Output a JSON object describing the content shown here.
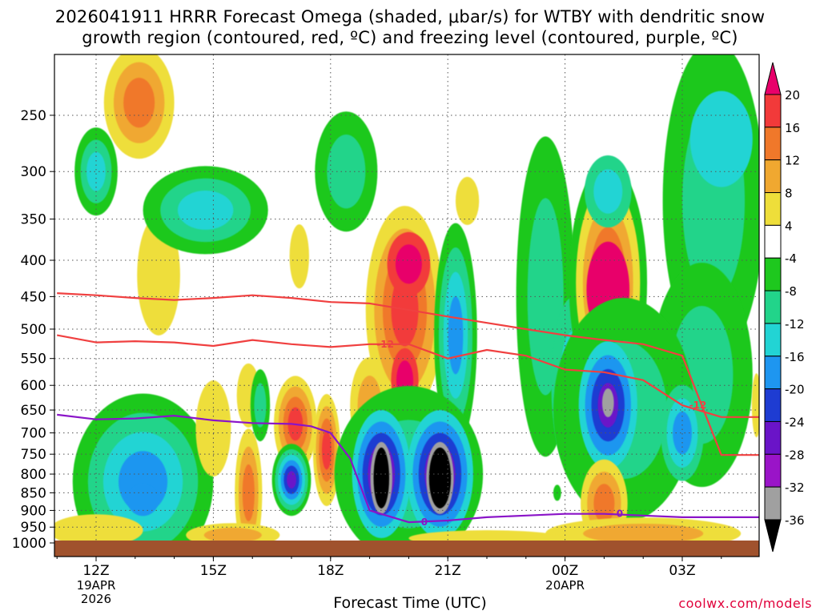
{
  "title_line1": "2026041911 HRRR Forecast Omega (shaded, μbar/s) for WTBY with dendritic snow",
  "title_line2": "growth region (contoured, red, ºC) and freezing level (contoured, purple, ºC)",
  "credit": "coolwx.com/models",
  "chart_data": {
    "type": "heatmap",
    "title": "2026041911 HRRR Forecast Omega (shaded, μbar/s) for WTBY with dendritic snow growth region (contoured, red, ºC) and freezing level (contoured, purple, ºC)",
    "xlabel": "Forecast Time (UTC)",
    "ylabel": "",
    "x_ticks": [
      {
        "hour": 12,
        "label": "12Z",
        "sub1": "19APR",
        "sub2": "2026"
      },
      {
        "hour": 15,
        "label": "15Z",
        "sub1": "",
        "sub2": ""
      },
      {
        "hour": 18,
        "label": "18Z",
        "sub1": "",
        "sub2": ""
      },
      {
        "hour": 21,
        "label": "21Z",
        "sub1": "",
        "sub2": ""
      },
      {
        "hour": 24,
        "label": "00Z",
        "sub1": "20APR",
        "sub2": ""
      },
      {
        "hour": 27,
        "label": "03Z",
        "sub1": "",
        "sub2": ""
      }
    ],
    "xlim": [
      11,
      29
    ],
    "y_ticks": [
      250,
      300,
      350,
      400,
      450,
      500,
      550,
      600,
      650,
      700,
      750,
      800,
      850,
      900,
      950,
      1000
    ],
    "ylim": [
      200,
      1000
    ],
    "y_scale": "log-pressure",
    "grid": true,
    "colorbar": {
      "levels": [
        20,
        16,
        12,
        8,
        4,
        -4,
        -8,
        -12,
        -16,
        -20,
        -24,
        -28,
        -32,
        -36
      ],
      "colors": [
        "#e8006a",
        "#f23a3a",
        "#f0782a",
        "#f0a830",
        "#eede3a",
        "#ffffff",
        "#1ec81e",
        "#22d48a",
        "#22d4d4",
        "#1e96f0",
        "#1e3cd2",
        "#6a14c8",
        "#9a14c8",
        "#a0a0a0",
        "#000000"
      ]
    },
    "omega_features": [
      {
        "hour": 19.3,
        "pressure": 810,
        "value": -38,
        "label": "strong ascent core"
      },
      {
        "hour": 20.8,
        "pressure": 810,
        "value": -38,
        "label": "strong ascent core"
      },
      {
        "hour": 25.1,
        "pressure": 440,
        "value": 20,
        "label": "strong descent core"
      },
      {
        "hour": 19.9,
        "pressure": 460,
        "value": 18,
        "label": "descent core"
      },
      {
        "hour": 13.1,
        "pressure": 260,
        "value": 13,
        "label": "descent core"
      },
      {
        "hour": 25.1,
        "pressure": 640,
        "value": -30,
        "label": "ascent core"
      },
      {
        "hour": 17.0,
        "pressure": 815,
        "value": -30,
        "label": "ascent core"
      }
    ],
    "series": [
      {
        "name": "-12",
        "color": "#f04040",
        "x": [
          11.0,
          12.0,
          13.0,
          14.0,
          15.0,
          16.0,
          17.0,
          18.0,
          19.0,
          20.0,
          21.0,
          22.0,
          23.0,
          24.0,
          25.0,
          26.0,
          27.0,
          28.0,
          29.0
        ],
        "y": [
          510,
          522,
          520,
          522,
          528,
          518,
          525,
          530,
          525,
          525,
          550,
          535,
          545,
          570,
          575,
          590,
          640,
          665,
          665
        ]
      },
      {
        "name": "",
        "color": "#f04040",
        "x": [
          11.0,
          12.0,
          13.0,
          14.0,
          15.0,
          16.0,
          17.0,
          18.0,
          19.0,
          20.0,
          21.0,
          22.0,
          23.0,
          24.0,
          25.0,
          26.0,
          27.0,
          28.0,
          29.0
        ],
        "y": [
          445,
          448,
          452,
          455,
          452,
          448,
          452,
          458,
          460,
          470,
          480,
          490,
          500,
          510,
          518,
          525,
          545,
          752,
          752
        ]
      },
      {
        "name": "0",
        "color": "#8a14c8",
        "x": [
          11.0,
          12.0,
          13.0,
          14.0,
          15.0,
          16.0,
          17.0,
          17.5,
          18.0,
          18.5,
          19.0,
          20.0,
          21.0,
          22.0,
          23.0,
          24.0,
          25.0,
          26.0,
          27.0,
          28.0,
          29.0
        ],
        "y": [
          660,
          670,
          668,
          662,
          672,
          678,
          680,
          685,
          700,
          760,
          900,
          935,
          930,
          920,
          915,
          910,
          910,
          915,
          920,
          920,
          920
        ]
      }
    ],
    "terrain_surface": 1000
  }
}
